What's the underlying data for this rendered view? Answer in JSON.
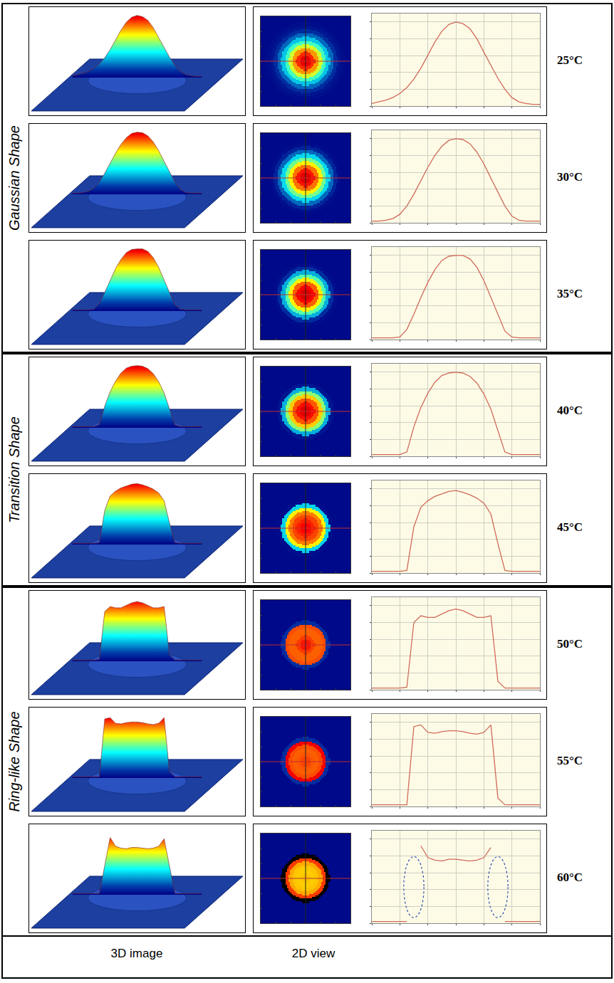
{
  "columns": [
    "3D image",
    "2D view"
  ],
  "chart_data": [
    {
      "type": "line",
      "title": "25°C",
      "group": "Gaussian Shape",
      "color": "#d06a5a",
      "grid": true,
      "tick_labels": false,
      "x": [
        0,
        5,
        10,
        15,
        20,
        25,
        30,
        35,
        40,
        45,
        50,
        55,
        60,
        65,
        70,
        75,
        80,
        85,
        90,
        95,
        100,
        105,
        110,
        115,
        120
      ],
      "values": [
        0.03,
        0.05,
        0.07,
        0.1,
        0.15,
        0.22,
        0.32,
        0.45,
        0.6,
        0.76,
        0.89,
        0.97,
        1.0,
        0.98,
        0.92,
        0.8,
        0.64,
        0.48,
        0.33,
        0.2,
        0.1,
        0.05,
        0.03,
        0.02,
        0.02
      ],
      "xlim": [
        0,
        120
      ],
      "ylim": [
        0,
        1.1
      ],
      "xticks": [
        0,
        20,
        40,
        60,
        80,
        100,
        120
      ],
      "yticks": [
        0,
        0.2,
        0.4,
        0.6,
        0.8,
        1
      ]
    },
    {
      "type": "line",
      "title": "30°C",
      "group": "Gaussian Shape",
      "color": "#d06a5a",
      "grid": true,
      "tick_labels": false,
      "x": [
        0,
        5,
        10,
        15,
        20,
        25,
        30,
        35,
        40,
        45,
        50,
        55,
        60,
        65,
        70,
        75,
        80,
        85,
        90,
        95,
        100,
        105,
        110,
        115,
        120
      ],
      "values": [
        0.02,
        0.02,
        0.03,
        0.05,
        0.1,
        0.2,
        0.34,
        0.5,
        0.66,
        0.8,
        0.91,
        0.98,
        1.0,
        0.99,
        0.94,
        0.84,
        0.7,
        0.53,
        0.36,
        0.2,
        0.08,
        0.03,
        0.02,
        0.02,
        0.02
      ],
      "xlim": [
        0,
        120
      ],
      "ylim": [
        0,
        1.1
      ],
      "xticks": [
        0,
        20,
        40,
        60,
        80,
        100,
        120
      ],
      "yticks": [
        0,
        0.2,
        0.4,
        0.6,
        0.8,
        1
      ]
    },
    {
      "type": "line",
      "title": "35°C",
      "group": "Gaussian Shape",
      "color": "#d06a5a",
      "grid": true,
      "tick_labels": false,
      "x": [
        0,
        5,
        10,
        15,
        20,
        25,
        30,
        35,
        40,
        45,
        50,
        55,
        60,
        65,
        70,
        75,
        80,
        85,
        90,
        95,
        100,
        105,
        110,
        115,
        120
      ],
      "values": [
        0.02,
        0.02,
        0.02,
        0.02,
        0.03,
        0.12,
        0.3,
        0.5,
        0.68,
        0.83,
        0.94,
        0.99,
        1.0,
        1.0,
        0.96,
        0.86,
        0.7,
        0.5,
        0.3,
        0.1,
        0.03,
        0.02,
        0.02,
        0.02,
        0.02
      ],
      "xlim": [
        0,
        120
      ],
      "ylim": [
        0,
        1.1
      ],
      "xticks": [
        0,
        20,
        40,
        60,
        80,
        100,
        120
      ],
      "yticks": [
        0,
        0.2,
        0.4,
        0.6,
        0.8,
        1
      ]
    },
    {
      "type": "line",
      "title": "40°C",
      "group": "Transition Shape",
      "color": "#d06a5a",
      "grid": true,
      "tick_labels": false,
      "x": [
        0,
        5,
        10,
        15,
        20,
        25,
        30,
        35,
        40,
        45,
        50,
        55,
        60,
        65,
        70,
        75,
        80,
        85,
        90,
        95,
        100,
        105,
        110,
        115,
        120
      ],
      "values": [
        0.02,
        0.02,
        0.02,
        0.02,
        0.02,
        0.05,
        0.35,
        0.58,
        0.75,
        0.88,
        0.96,
        0.99,
        1.0,
        0.99,
        0.95,
        0.87,
        0.74,
        0.56,
        0.3,
        0.05,
        0.02,
        0.02,
        0.02,
        0.02,
        0.02
      ],
      "xlim": [
        0,
        120
      ],
      "ylim": [
        0,
        1.1
      ],
      "xticks": [
        0,
        20,
        40,
        60,
        80,
        100,
        120
      ],
      "yticks": [
        0,
        0.2,
        0.4,
        0.6,
        0.8,
        1
      ]
    },
    {
      "type": "line",
      "title": "45°C",
      "group": "Transition Shape",
      "color": "#d06a5a",
      "grid": true,
      "tick_labels": false,
      "x": [
        0,
        5,
        10,
        15,
        20,
        25,
        30,
        35,
        40,
        45,
        50,
        55,
        60,
        65,
        70,
        75,
        80,
        85,
        90,
        95,
        100,
        105,
        110,
        115,
        120
      ],
      "values": [
        0.02,
        0.02,
        0.02,
        0.02,
        0.02,
        0.03,
        0.55,
        0.78,
        0.86,
        0.91,
        0.94,
        0.97,
        0.98,
        0.96,
        0.93,
        0.89,
        0.83,
        0.7,
        0.35,
        0.03,
        0.02,
        0.02,
        0.02,
        0.02,
        0.02
      ],
      "xlim": [
        0,
        120
      ],
      "ylim": [
        0,
        1.1
      ],
      "xticks": [
        0,
        20,
        40,
        60,
        80,
        100,
        120
      ],
      "yticks": [
        0,
        0.2,
        0.4,
        0.6,
        0.8,
        1
      ]
    },
    {
      "type": "line",
      "title": "50°C",
      "group": "Ring-like Shape",
      "color": "#d06a5a",
      "grid": true,
      "tick_labels": false,
      "x": [
        0,
        5,
        10,
        15,
        20,
        25,
        30,
        35,
        40,
        45,
        50,
        55,
        60,
        65,
        70,
        75,
        80,
        85,
        90,
        95,
        100,
        105,
        110,
        115,
        120
      ],
      "values": [
        0.02,
        0.02,
        0.02,
        0.02,
        0.02,
        0.03,
        0.8,
        0.88,
        0.86,
        0.86,
        0.9,
        0.94,
        0.96,
        0.94,
        0.9,
        0.86,
        0.86,
        0.88,
        0.1,
        0.02,
        0.02,
        0.02,
        0.02,
        0.02,
        0.02
      ],
      "xlim": [
        0,
        120
      ],
      "ylim": [
        0,
        1.1
      ],
      "xticks": [
        0,
        20,
        40,
        60,
        80,
        100,
        120
      ],
      "yticks": [
        0,
        0.2,
        0.4,
        0.6,
        0.8,
        1
      ]
    },
    {
      "type": "line",
      "title": "55°C",
      "group": "Ring-like Shape",
      "color": "#d06a5a",
      "grid": true,
      "tick_labels": false,
      "x": [
        0,
        5,
        10,
        15,
        20,
        25,
        30,
        35,
        40,
        45,
        50,
        55,
        60,
        65,
        70,
        75,
        80,
        85,
        90,
        95,
        100,
        105,
        110,
        115,
        120
      ],
      "values": [
        0.02,
        0.02,
        0.02,
        0.02,
        0.02,
        0.02,
        0.95,
        0.97,
        0.88,
        0.87,
        0.89,
        0.9,
        0.9,
        0.89,
        0.87,
        0.86,
        0.88,
        0.97,
        0.1,
        0.02,
        0.02,
        0.02,
        0.02,
        0.02,
        0.02
      ],
      "xlim": [
        0,
        120
      ],
      "ylim": [
        0,
        1.1
      ],
      "xticks": [
        0,
        20,
        40,
        60,
        80,
        100,
        120
      ],
      "yticks": [
        0,
        0.2,
        0.4,
        0.6,
        0.8,
        1
      ]
    },
    {
      "type": "line",
      "title": "60°C",
      "group": "Ring-like Shape",
      "color": "#d06a5a",
      "grid": true,
      "tick_labels": false,
      "x": [
        0,
        5,
        10,
        15,
        20,
        25,
        30,
        35,
        40,
        45,
        50,
        55,
        60,
        65,
        70,
        75,
        80,
        85,
        90,
        95,
        100,
        105,
        110,
        115,
        120
      ],
      "values": [
        0.02,
        0.02,
        0.02,
        0.02,
        0.02,
        0.02,
        null,
        0.92,
        0.78,
        0.75,
        0.74,
        0.76,
        0.76,
        0.75,
        0.74,
        0.75,
        0.78,
        0.9,
        null,
        0.02,
        0.02,
        0.02,
        0.02,
        0.02,
        0.02
      ],
      "xlim": [
        0,
        120
      ],
      "ylim": [
        0,
        1.1
      ],
      "xticks": [
        0,
        20,
        40,
        60,
        80,
        100,
        120
      ],
      "yticks": [
        0,
        0.2,
        0.4,
        0.6,
        0.8,
        1
      ]
    }
  ]
}
